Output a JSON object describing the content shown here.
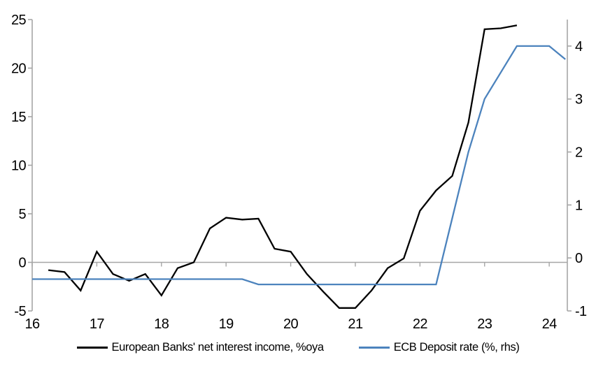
{
  "legend": {
    "series1_label": "European Banks' net interest income, %oya",
    "series2_label": "ECB Deposit rate (%, rhs)"
  },
  "colors": {
    "series1": "#000000",
    "series2": "#4c83bd",
    "axis": "#a6a6a6",
    "text": "#000000",
    "background": "#ffffff"
  },
  "chart_data": {
    "type": "line",
    "title": "",
    "xlabel": "",
    "ylabel_left": "",
    "ylabel_right": "",
    "grid": false,
    "zero_axis_line": true,
    "legend_position": "bottom-center",
    "x_range": [
      16,
      24.28
    ],
    "x_ticks": [
      16,
      17,
      18,
      19,
      20,
      21,
      22,
      23,
      24
    ],
    "x_tick_labels": [
      "16",
      "17",
      "18",
      "19",
      "20",
      "21",
      "22",
      "23",
      "24"
    ],
    "left_axis": {
      "range": [
        -5,
        25
      ],
      "ticks": [
        -5,
        0,
        5,
        10,
        15,
        20,
        25
      ],
      "tick_labels": [
        "-5",
        "0",
        "5",
        "10",
        "15",
        "20",
        "25"
      ]
    },
    "right_axis": {
      "range": [
        -1,
        4.5
      ],
      "ticks": [
        -1,
        0,
        1,
        2,
        3,
        4
      ],
      "tick_labels": [
        "-1",
        "0",
        "1",
        "2",
        "3",
        "4"
      ]
    },
    "series": [
      {
        "name": "European Banks' net interest income, %oya",
        "axis": "left",
        "color": "#000000",
        "x": [
          16.25,
          16.5,
          16.75,
          17,
          17.25,
          17.5,
          17.75,
          18,
          18.25,
          18.5,
          18.75,
          19,
          19.25,
          19.5,
          19.75,
          20,
          20.25,
          20.5,
          20.75,
          21,
          21.25,
          21.5,
          21.75,
          22,
          22.25,
          22.5,
          22.75,
          23,
          23.25,
          23.5
        ],
        "values": [
          -0.8,
          -1.0,
          -2.9,
          1.1,
          -1.2,
          -1.9,
          -1.2,
          -3.4,
          -0.6,
          0.0,
          3.5,
          4.6,
          4.4,
          4.5,
          1.4,
          1.1,
          -1.2,
          -3.0,
          -4.7,
          -4.7,
          -2.9,
          -0.6,
          0.4,
          5.3,
          7.4,
          8.9,
          14.4,
          24.0,
          24.1,
          24.4
        ]
      },
      {
        "name": "ECB Deposit rate (%, rhs)",
        "axis": "right",
        "color": "#4c83bd",
        "x": [
          16,
          16.25,
          16.5,
          16.75,
          17,
          17.25,
          17.5,
          17.75,
          18,
          18.25,
          18.5,
          18.75,
          19,
          19.25,
          19.5,
          19.75,
          20,
          20.25,
          20.5,
          20.75,
          21,
          21.25,
          21.5,
          21.75,
          22,
          22.25,
          22.5,
          22.75,
          23,
          23.25,
          23.5,
          23.75,
          24,
          24.25
        ],
        "values": [
          -0.4,
          -0.4,
          -0.4,
          -0.4,
          -0.4,
          -0.4,
          -0.4,
          -0.4,
          -0.4,
          -0.4,
          -0.4,
          -0.4,
          -0.4,
          -0.4,
          -0.5,
          -0.5,
          -0.5,
          -0.5,
          -0.5,
          -0.5,
          -0.5,
          -0.5,
          -0.5,
          -0.5,
          -0.5,
          -0.5,
          0.75,
          2.0,
          3.0,
          3.5,
          4.0,
          4.0,
          4.0,
          3.75
        ]
      }
    ]
  }
}
